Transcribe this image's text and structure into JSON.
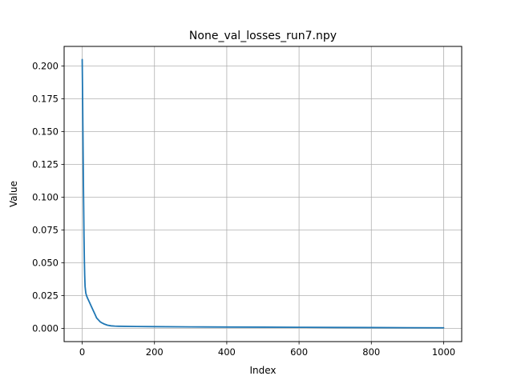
{
  "chart_data": {
    "type": "line",
    "title": "None_val_losses_run7.npy",
    "xlabel": "Index",
    "ylabel": "Value",
    "xlim": [
      -50,
      1050
    ],
    "ylim": [
      -0.01,
      0.215
    ],
    "grid": true,
    "line_color": "#1f77b4",
    "xticks": [
      {
        "value": 0,
        "label": "0"
      },
      {
        "value": 200,
        "label": "200"
      },
      {
        "value": 400,
        "label": "400"
      },
      {
        "value": 600,
        "label": "600"
      },
      {
        "value": 800,
        "label": "800"
      },
      {
        "value": 1000,
        "label": "1000"
      }
    ],
    "yticks": [
      {
        "value": 0.0,
        "label": "0.000"
      },
      {
        "value": 0.025,
        "label": "0.025"
      },
      {
        "value": 0.05,
        "label": "0.050"
      },
      {
        "value": 0.075,
        "label": "0.075"
      },
      {
        "value": 0.1,
        "label": "0.100"
      },
      {
        "value": 0.125,
        "label": "0.125"
      },
      {
        "value": 0.15,
        "label": "0.150"
      },
      {
        "value": 0.175,
        "label": "0.175"
      },
      {
        "value": 0.2,
        "label": "0.200"
      }
    ],
    "series": [
      {
        "x": [
          0,
          1,
          2,
          3,
          4,
          5,
          6,
          7,
          8,
          10,
          12,
          15,
          20,
          25,
          30,
          35,
          40,
          45,
          50,
          55,
          60,
          70,
          80,
          90,
          100,
          150,
          200,
          300,
          400,
          500,
          600,
          700,
          800,
          900,
          1000
        ],
        "values": [
          0.205,
          0.18,
          0.15,
          0.12,
          0.095,
          0.07,
          0.052,
          0.04,
          0.032,
          0.027,
          0.025,
          0.023,
          0.02,
          0.017,
          0.014,
          0.011,
          0.008,
          0.0065,
          0.005,
          0.0042,
          0.0035,
          0.0025,
          0.002,
          0.0018,
          0.0017,
          0.0015,
          0.0014,
          0.0012,
          0.0011,
          0.001,
          0.0009,
          0.0008,
          0.0007,
          0.0006,
          0.0005
        ]
      }
    ]
  }
}
